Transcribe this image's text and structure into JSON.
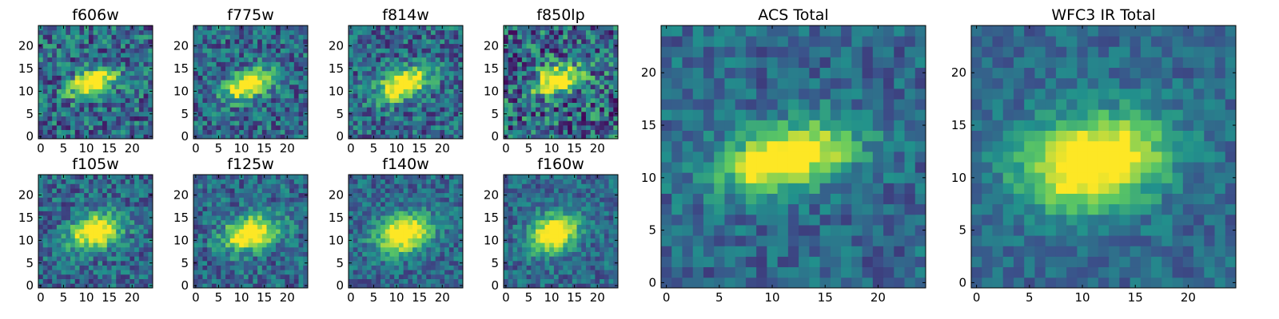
{
  "chart_data": [
    {
      "type": "heatmap",
      "title": "f606w",
      "xlim": [
        0,
        25
      ],
      "ylim": [
        0,
        25
      ],
      "xticks": [
        "0",
        "5",
        "10",
        "15",
        "20"
      ],
      "yticks": [
        "0",
        "5",
        "10",
        "15",
        "20"
      ],
      "source": {
        "cx": 12,
        "cy": 12.5,
        "sx": 3.6,
        "sy": 1.8,
        "angle": 22,
        "noise": 0.34,
        "seed": 11
      }
    },
    {
      "type": "heatmap",
      "title": "f775w",
      "xlim": [
        0,
        25
      ],
      "ylim": [
        0,
        25
      ],
      "xticks": [
        "0",
        "5",
        "10",
        "15",
        "20"
      ],
      "yticks": [
        "0",
        "5",
        "10",
        "15",
        "20"
      ],
      "source": {
        "cx": 12,
        "cy": 12,
        "sx": 3.8,
        "sy": 1.9,
        "angle": 22,
        "noise": 0.3,
        "seed": 23
      }
    },
    {
      "type": "heatmap",
      "title": "f814w",
      "xlim": [
        0,
        25
      ],
      "ylim": [
        0,
        25
      ],
      "xticks": [
        "0",
        "5",
        "10",
        "15",
        "20"
      ],
      "yticks": [
        "0",
        "5",
        "10",
        "15",
        "20"
      ],
      "source": {
        "cx": 12,
        "cy": 12,
        "sx": 4.0,
        "sy": 2.0,
        "angle": 22,
        "noise": 0.3,
        "seed": 37
      }
    },
    {
      "type": "heatmap",
      "title": "f850lp",
      "xlim": [
        0,
        25
      ],
      "ylim": [
        0,
        25
      ],
      "xticks": [
        "0",
        "5",
        "10",
        "15",
        "20"
      ],
      "yticks": [
        "0",
        "5",
        "10",
        "15",
        "20"
      ],
      "source": {
        "cx": 12,
        "cy": 13,
        "sx": 3.6,
        "sy": 2.0,
        "angle": 18,
        "noise": 0.42,
        "seed": 51
      }
    },
    {
      "type": "heatmap",
      "title": "f105w",
      "xlim": [
        0,
        25
      ],
      "ylim": [
        0,
        25
      ],
      "xticks": [
        "0",
        "5",
        "10",
        "15",
        "20"
      ],
      "yticks": [
        "0",
        "5",
        "10",
        "15",
        "20"
      ],
      "source": {
        "cx": 12.5,
        "cy": 12.5,
        "sx": 3.8,
        "sy": 2.4,
        "angle": 15,
        "noise": 0.26,
        "seed": 67
      }
    },
    {
      "type": "heatmap",
      "title": "f125w",
      "xlim": [
        0,
        25
      ],
      "ylim": [
        0,
        25
      ],
      "xticks": [
        "0",
        "5",
        "10",
        "15",
        "20"
      ],
      "yticks": [
        "0",
        "5",
        "10",
        "15",
        "20"
      ],
      "source": {
        "cx": 12.5,
        "cy": 12,
        "sx": 4.0,
        "sy": 2.4,
        "angle": 15,
        "noise": 0.26,
        "seed": 79
      }
    },
    {
      "type": "heatmap",
      "title": "f140w",
      "xlim": [
        0,
        25
      ],
      "ylim": [
        0,
        25
      ],
      "xticks": [
        "0",
        "5",
        "10",
        "15",
        "20"
      ],
      "yticks": [
        "0",
        "5",
        "10",
        "15",
        "20"
      ],
      "source": {
        "cx": 12,
        "cy": 12,
        "sx": 4.0,
        "sy": 2.6,
        "angle": 20,
        "noise": 0.22,
        "seed": 97
      }
    },
    {
      "type": "heatmap",
      "title": "f160w",
      "xlim": [
        0,
        25
      ],
      "ylim": [
        0,
        25
      ],
      "xticks": [
        "0",
        "5",
        "10",
        "15",
        "20"
      ],
      "yticks": [
        "0",
        "5",
        "10",
        "15",
        "20"
      ],
      "source": {
        "cx": 11,
        "cy": 12,
        "sx": 3.6,
        "sy": 2.6,
        "angle": 25,
        "noise": 0.22,
        "seed": 113
      }
    },
    {
      "type": "heatmap",
      "title": "ACS Total",
      "xlim": [
        0,
        25
      ],
      "ylim": [
        0,
        25
      ],
      "xticks": [
        "0",
        "5",
        "10",
        "15",
        "20"
      ],
      "yticks": [
        "0",
        "5",
        "10",
        "15",
        "20"
      ],
      "source": {
        "cx": 12,
        "cy": 12.5,
        "sx": 4.2,
        "sy": 2.0,
        "angle": 15,
        "noise": 0.2,
        "seed": 131
      }
    },
    {
      "type": "heatmap",
      "title": "WFC3 IR Total",
      "xlim": [
        0,
        25
      ],
      "ylim": [
        0,
        25
      ],
      "xticks": [
        "0",
        "5",
        "10",
        "15",
        "20"
      ],
      "yticks": [
        "0",
        "5",
        "10",
        "15",
        "20"
      ],
      "source": {
        "cx": 11.5,
        "cy": 12,
        "sx": 4.6,
        "sy": 2.9,
        "angle": 12,
        "noise": 0.16,
        "seed": 149
      }
    }
  ],
  "colormap": [
    "#440154",
    "#3b528b",
    "#21918c",
    "#5ec962",
    "#fde725"
  ]
}
